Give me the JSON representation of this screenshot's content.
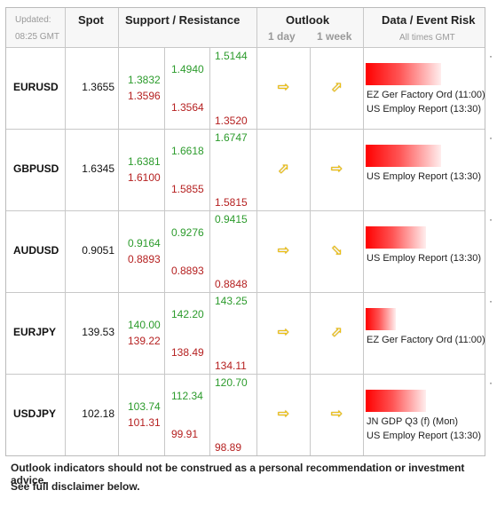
{
  "header": {
    "updated_label": "Updated:",
    "updated_time": "08:25 GMT",
    "spot": "Spot",
    "support_resistance": "Support / Resistance",
    "outlook": "Outlook",
    "outlook_day": "1 day",
    "outlook_week": "1 week",
    "event_risk": "Data / Event Risk",
    "times_note": "All times GMT"
  },
  "rows": [
    {
      "pair": "EURUSD",
      "spot": "1.3655",
      "s1_res": "1.3832",
      "s1_sup": "1.3596",
      "s2_res": "1.4940",
      "s2_sup": "1.3564",
      "s3_res": "1.5144",
      "s3_sup": "1.3520",
      "day_arrow": "right-arrow-icon",
      "day_glyph": "⇨",
      "week_arrow": "up-right-arrow-icon",
      "week_glyph": "⬀",
      "risk_level": 0.85,
      "events": [
        "EZ Ger Factory Ord (11:00)",
        "US Employ Report (13:30)"
      ]
    },
    {
      "pair": "GBPUSD",
      "spot": "1.6345",
      "s1_res": "1.6381",
      "s1_sup": "1.6100",
      "s2_res": "1.6618",
      "s2_sup": "1.5855",
      "s3_res": "1.6747",
      "s3_sup": "1.5815",
      "day_arrow": "up-right-arrow-icon",
      "day_glyph": "⬀",
      "week_arrow": "right-arrow-icon",
      "week_glyph": "⇨",
      "risk_level": 0.85,
      "events": [
        "US Employ Report (13:30)"
      ]
    },
    {
      "pair": "AUDUSD",
      "spot": "0.9051",
      "s1_res": "0.9164",
      "s1_sup": "0.8893",
      "s2_res": "0.9276",
      "s2_sup": "0.8893",
      "s3_res": "0.9415",
      "s3_sup": "0.8848",
      "day_arrow": "right-arrow-icon",
      "day_glyph": "⇨",
      "week_arrow": "down-right-arrow-icon",
      "week_glyph": "⬂",
      "risk_level": 0.68,
      "events": [
        "US Employ Report (13:30)"
      ]
    },
    {
      "pair": "EURJPY",
      "spot": "139.53",
      "s1_res": "140.00",
      "s1_sup": "139.22",
      "s2_res": "142.20",
      "s2_sup": "138.49",
      "s3_res": "143.25",
      "s3_sup": "134.11",
      "day_arrow": "right-arrow-icon",
      "day_glyph": "⇨",
      "week_arrow": "up-right-arrow-icon",
      "week_glyph": "⬀",
      "risk_level": 0.34,
      "events": [
        "EZ Ger Factory Ord (11:00)"
      ]
    },
    {
      "pair": "USDJPY",
      "spot": "102.18",
      "s1_res": "103.74",
      "s1_sup": "101.31",
      "s2_res": "112.34",
      "s2_sup": "99.91",
      "s3_res": "120.70",
      "s3_sup": "98.89",
      "day_arrow": "right-arrow-icon",
      "day_glyph": "⇨",
      "week_arrow": "right-arrow-icon",
      "week_glyph": "⇨",
      "risk_level": 0.68,
      "events": [
        "JN GDP Q3 (f) (Mon)",
        "US Employ Report (13:30)"
      ]
    }
  ],
  "colors": {
    "resistance": "#2c9b2c",
    "support": "#b52020",
    "risk_bar": "#ff0000",
    "arrow": "#f2c200"
  },
  "footer": {
    "line1": "Outlook indicators should not be construed as a personal recommendation or investment advice.",
    "line2": "See full disclaimer below."
  }
}
